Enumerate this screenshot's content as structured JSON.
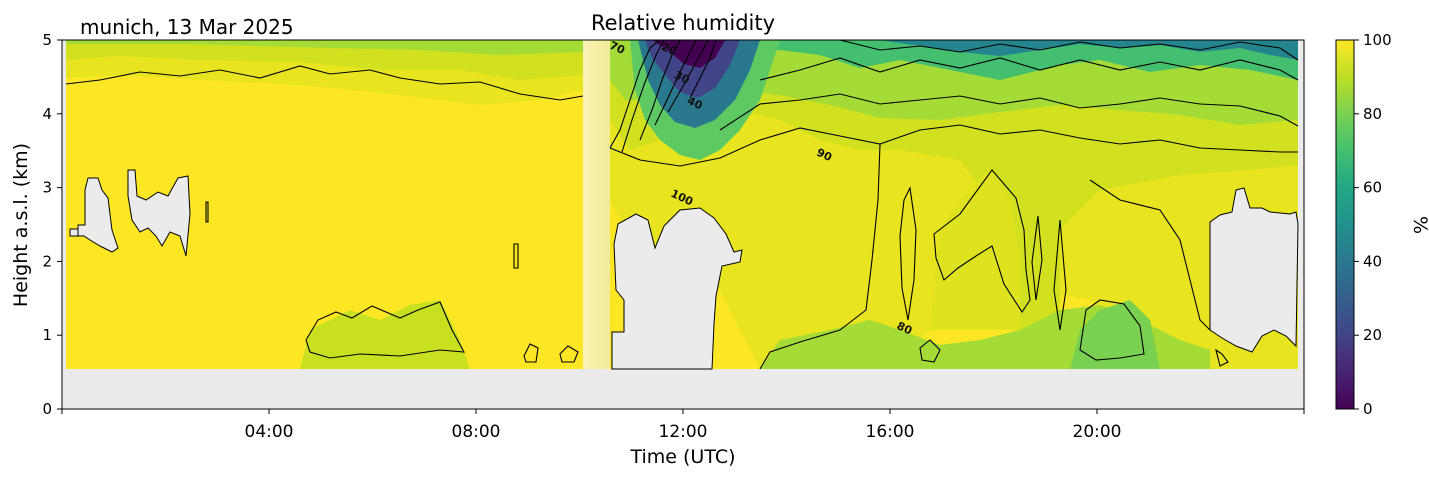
{
  "header": {
    "location_date": "munich, 13 Mar 2025"
  },
  "chart_data": {
    "type": "heatmap",
    "title": "Relative humidity",
    "xlabel": "Time (UTC)",
    "ylabel": "Height a.s.l. (km)",
    "xlim": [
      0,
      24
    ],
    "ylim": [
      0,
      5
    ],
    "xticks": [
      4,
      8,
      12,
      16,
      20
    ],
    "xtick_labels": [
      "04:00",
      "08:00",
      "12:00",
      "16:00",
      "20:00"
    ],
    "yticks": [
      0,
      1,
      2,
      3,
      4,
      5
    ],
    "ytick_labels": [
      "0",
      "1",
      "2",
      "3",
      "4",
      "5"
    ],
    "colorbar": {
      "label": "%",
      "range": [
        0,
        100
      ],
      "ticks": [
        0,
        20,
        40,
        60,
        80,
        100
      ],
      "tick_labels": [
        "0",
        "20",
        "40",
        "60",
        "80",
        "100"
      ],
      "colormap": "viridis"
    },
    "contour_levels": [
      20,
      30,
      40,
      50,
      60,
      70,
      80,
      90,
      100
    ],
    "contour_labels": [
      {
        "text": "20",
        "x": 11.7,
        "y": 4.83
      },
      {
        "text": "30",
        "x": 11.95,
        "y": 4.45
      },
      {
        "text": "40",
        "x": 12.2,
        "y": 4.1
      },
      {
        "text": "70",
        "x": 10.7,
        "y": 4.85
      },
      {
        "text": "90",
        "x": 14.7,
        "y": 3.4
      },
      {
        "text": "100",
        "x": 11.95,
        "y": 2.82
      },
      {
        "text": "80",
        "x": 16.25,
        "y": 1.05
      }
    ],
    "lowest_valid_height_km": 0.55,
    "missing_data_periods": [
      {
        "start": 10.15,
        "end": 10.65
      }
    ],
    "cloud_masked_regions": [
      {
        "start": 0.15,
        "end": 0.45,
        "bottom": 2.25,
        "top": 2.6
      },
      {
        "start": 0.4,
        "end": 1.0,
        "bottom": 2.6,
        "top": 3.2
      },
      {
        "start": 1.3,
        "end": 2.45,
        "bottom": 2.2,
        "top": 3.25
      },
      {
        "start": 10.7,
        "end": 12.9,
        "bottom": 0.55,
        "top": 2.7
      },
      {
        "start": 22.1,
        "end": 23.95,
        "bottom": 0.9,
        "top": 3.0
      }
    ],
    "colors": {
      "saturated": "#fde725",
      "mask": "#ebebeb",
      "contour": "#000000"
    }
  }
}
